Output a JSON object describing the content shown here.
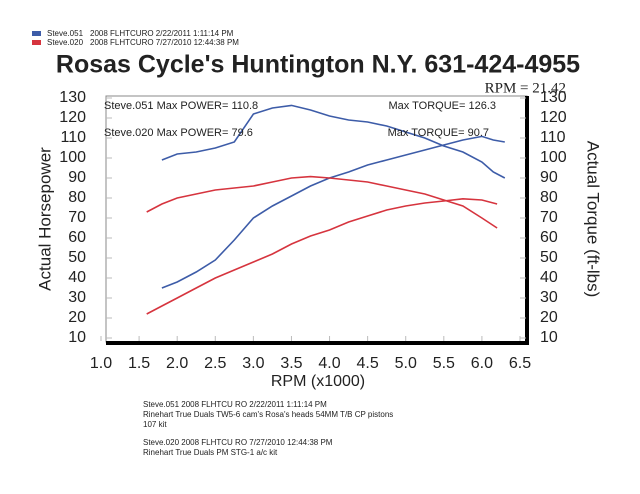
{
  "chart_data": {
    "type": "line",
    "title": "Rosas Cycle's Huntington N.Y. 631-424-4955",
    "rpm_note": "RPM = 21.42",
    "xlabel": "RPM (x1000)",
    "ylabel": "Actual Horsepower",
    "y2label": "Actual Torque (ft-lbs)",
    "xlim": [
      1,
      6.5
    ],
    "xticks": [
      {
        "value": 1,
        "label": "1.0"
      },
      1.5,
      {
        "value": 2,
        "label": "2.0"
      },
      2.5,
      {
        "value": 3,
        "label": "3.0"
      },
      3.5,
      {
        "value": 4,
        "label": "4.0"
      },
      4.5,
      {
        "value": 5,
        "label": "5.0"
      },
      5.5,
      {
        "value": 6,
        "label": "6.0"
      },
      6.5
    ],
    "ylim": [
      10,
      130
    ],
    "yticks": [
      10,
      20,
      30,
      40,
      50,
      60,
      70,
      80,
      90,
      100,
      110,
      120,
      130
    ],
    "y2lim": [
      10,
      130
    ],
    "y2ticks": [
      10,
      20,
      30,
      40,
      50,
      60,
      70,
      80,
      90,
      100,
      110,
      120,
      130
    ],
    "torque_axis": "y2",
    "series": [
      {
        "name": "Steve.051",
        "detail": "2008 FLHTCURO  2/22/2011 1:11:14 PM",
        "color": "#3d5ca8",
        "x": [
          1.8,
          2.0,
          2.25,
          2.5,
          2.75,
          3.0,
          3.25,
          3.5,
          3.75,
          4.0,
          4.25,
          4.5,
          4.75,
          5.0,
          5.25,
          5.5,
          5.75,
          6.0,
          6.15,
          6.3
        ],
        "power": [
          35,
          38,
          43,
          49,
          59,
          70,
          76,
          81,
          86,
          90,
          93,
          96.5,
          99,
          101.5,
          104,
          106.5,
          109,
          110.8,
          109,
          108
        ],
        "torque": [
          99,
          102,
          103,
          105,
          108,
          122,
          125,
          126.3,
          124,
          121,
          119,
          118,
          116,
          113,
          110,
          106,
          103,
          98,
          93,
          90
        ]
      },
      {
        "name": "Steve.020",
        "detail": "2008 FLHTCURO  7/27/2010 12:44:38 PM",
        "color": "#d6343e",
        "x": [
          1.6,
          1.8,
          2.0,
          2.25,
          2.5,
          2.75,
          3.0,
          3.25,
          3.5,
          3.75,
          4.0,
          4.25,
          4.5,
          4.75,
          5.0,
          5.25,
          5.5,
          5.75,
          6.0,
          6.2
        ],
        "power": [
          22,
          26,
          30,
          35,
          40,
          44,
          48,
          52,
          57,
          61,
          64,
          68,
          71,
          74,
          76,
          77.5,
          78.5,
          79.6,
          79,
          77
        ],
        "torque": [
          73,
          77,
          80,
          82,
          84,
          85,
          86,
          88,
          90,
          90.7,
          90,
          89,
          88,
          86,
          84,
          82,
          79,
          76,
          70,
          65
        ]
      }
    ],
    "annotations": [
      {
        "text": "Steve.051  Max POWER= 110.8",
        "series": 0
      },
      {
        "text": "Max TORQUE= 126.3",
        "series": 0
      },
      {
        "text": "Steve.020  Max POWER= 79.6",
        "series": 1
      },
      {
        "text": "Max TORQUE= 90.7",
        "series": 1
      }
    ],
    "notes": [
      [
        "Steve.051    2008 FLHTCU    RO    2/22/2011 1:11:14 PM",
        "Rinehart True Duals TW5-6 cam's Rosa's heads 54MM T/B CP pistons",
        "107 kit"
      ],
      [
        "Steve.020    2008 FLHTCU    RO    7/27/2010 12:44:38 PM",
        "Rinehart True Duals PM STG-1 a/c kit"
      ]
    ]
  }
}
